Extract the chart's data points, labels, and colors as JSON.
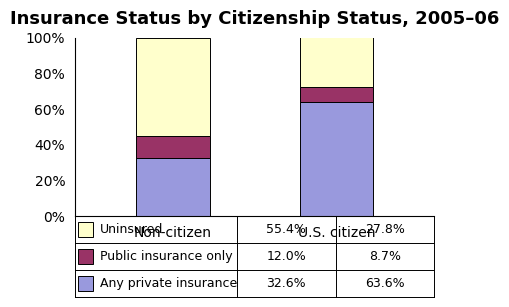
{
  "title": "Insurance Status by Citizenship Status, 2005–06",
  "categories": [
    "Non-citizen",
    "U.S. citizen"
  ],
  "series": [
    {
      "label": "Any private insurance",
      "values": [
        32.6,
        63.6
      ],
      "color": "#9999dd"
    },
    {
      "label": "Public insurance only",
      "values": [
        12.0,
        8.7
      ],
      "color": "#993366"
    },
    {
      "label": "Uninsured",
      "values": [
        55.4,
        27.8
      ],
      "color": "#ffffcc"
    }
  ],
  "table_data": [
    [
      "Uninsured",
      "55.4%",
      "27.8%"
    ],
    [
      "Public insurance only",
      "12.0%",
      "8.7%"
    ],
    [
      "Any private insurance",
      "32.6%",
      "63.6%"
    ]
  ],
  "table_colors": [
    "#ffffcc",
    "#993366",
    "#9999dd"
  ],
  "ylim": [
    0,
    100
  ],
  "yticks": [
    0,
    20,
    40,
    60,
    80,
    100
  ],
  "ytick_labels": [
    "0%",
    "20%",
    "40%",
    "60%",
    "80%",
    "100%"
  ],
  "bar_width": 0.45,
  "background_color": "#ffffff",
  "title_fontsize": 13,
  "tick_fontsize": 10,
  "table_fontsize": 9
}
